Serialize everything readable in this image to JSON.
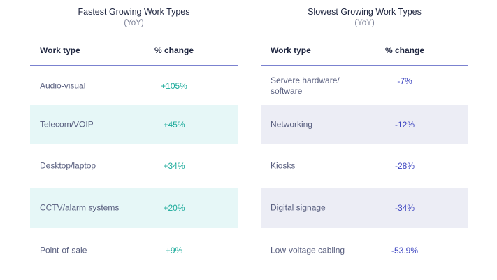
{
  "fastest": {
    "title": "Fastest Growing Work Types",
    "subtitle": "(YoY)",
    "headers": [
      "Work type",
      "% change"
    ],
    "rows": [
      {
        "type": "Audio-visual",
        "change": "+105%"
      },
      {
        "type": "Telecom/VOIP",
        "change": "+45%"
      },
      {
        "type": "Desktop/laptop",
        "change": "+34%"
      },
      {
        "type": "CCTV/alarm systems",
        "change": "+20%"
      },
      {
        "type": "Point-of-sale",
        "change": "+9%"
      }
    ],
    "accent": "#1aaa9a",
    "shade": "#e6f7f7"
  },
  "slowest": {
    "title": "Slowest Growing Work Types",
    "subtitle": "(YoY)",
    "headers": [
      "Work type",
      "% change"
    ],
    "rows": [
      {
        "type": "Servere hardware/ software",
        "change": "-7%"
      },
      {
        "type": "Networking",
        "change": "-12%"
      },
      {
        "type": "Kiosks",
        "change": "-28%"
      },
      {
        "type": "Digital signage",
        "change": "-34%"
      },
      {
        "type": "Low-voltage cabling",
        "change": "-53.9%"
      }
    ],
    "accent": "#3c44c0",
    "shade": "#ecedf5"
  }
}
